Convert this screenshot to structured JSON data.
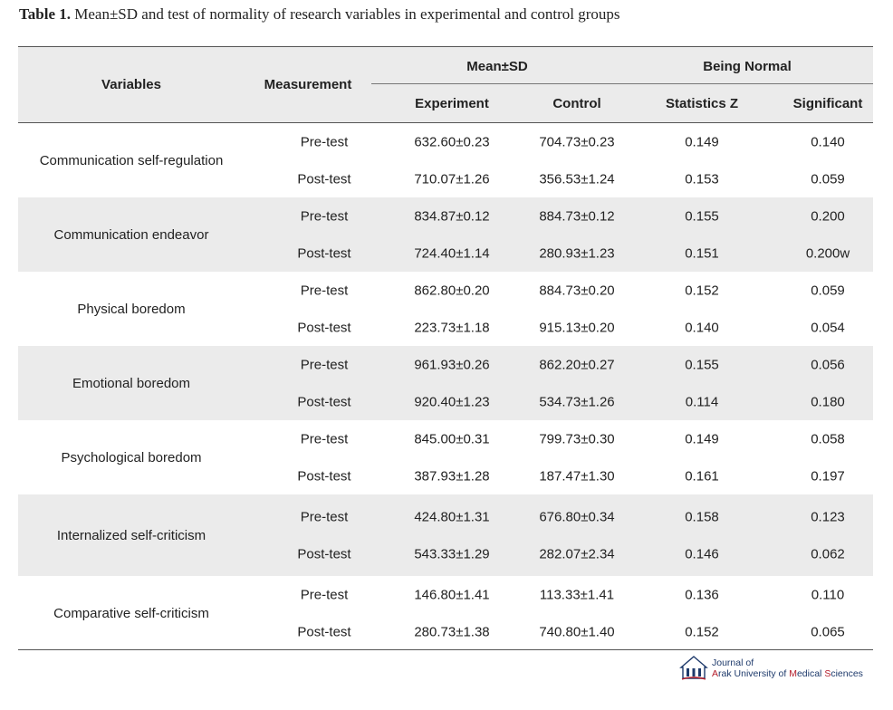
{
  "caption": {
    "label": "Table 1.",
    "text": "Mean±SD and test of normality of research variables in experimental and control groups"
  },
  "header": {
    "variables": "Variables",
    "measurement": "Measurement",
    "mean_sd": "Mean±SD",
    "being_normal": "Being Normal",
    "experiment": "Experiment",
    "control": "Control",
    "statistics_z": "Statistics Z",
    "significant": "Significant"
  },
  "groups": [
    {
      "variable": "Communication self-regulation",
      "rows": [
        {
          "measurement": "Pre-test",
          "experiment": "632.60±0.23",
          "control": "704.73±0.23",
          "z": "0.149",
          "sig": "0.140"
        },
        {
          "measurement": "Post-test",
          "experiment": "710.07±1.26",
          "control": "356.53±1.24",
          "z": "0.153",
          "sig": "0.059"
        }
      ]
    },
    {
      "variable": "Communication endeavor",
      "rows": [
        {
          "measurement": "Pre-test",
          "experiment": "834.87±0.12",
          "control": "884.73±0.12",
          "z": "0.155",
          "sig": "0.200"
        },
        {
          "measurement": "Post-test",
          "experiment": "724.40±1.14",
          "control": "280.93±1.23",
          "z": "0.151",
          "sig": "0.200w"
        }
      ]
    },
    {
      "variable": "Physical boredom",
      "rows": [
        {
          "measurement": "Pre-test",
          "experiment": "862.80±0.20",
          "control": "884.73±0.20",
          "z": "0.152",
          "sig": "0.059"
        },
        {
          "measurement": "Post-test",
          "experiment": "223.73±1.18",
          "control": "915.13±0.20",
          "z": "0.140",
          "sig": "0.054"
        }
      ]
    },
    {
      "variable": "Emotional boredom",
      "rows": [
        {
          "measurement": "Pre-test",
          "experiment": "961.93±0.26",
          "control": "862.20±0.27",
          "z": "0.155",
          "sig": "0.056"
        },
        {
          "measurement": "Post-test",
          "experiment": "920.40±1.23",
          "control": "534.73±1.26",
          "z": "0.114",
          "sig": "0.180"
        }
      ]
    },
    {
      "variable": "Psychological boredom",
      "rows": [
        {
          "measurement": "Pre-test",
          "experiment": "845.00±0.31",
          "control": "799.73±0.30",
          "z": "0.149",
          "sig": "0.058"
        },
        {
          "measurement": "Post-test",
          "experiment": "387.93±1.28",
          "control": "187.47±1.30",
          "z": "0.161",
          "sig": "0.197"
        }
      ]
    },
    {
      "variable": "Internalized self-criticism",
      "rows": [
        {
          "measurement": "Pre-test",
          "experiment": "424.80±1.31",
          "control": "676.80±0.34",
          "z": "0.158",
          "sig": "0.123"
        },
        {
          "measurement": "Post-test",
          "experiment": "543.33±1.29",
          "control": "282.07±2.34",
          "z": "0.146",
          "sig": "0.062"
        }
      ]
    },
    {
      "variable": "Comparative self-criticism",
      "rows": [
        {
          "measurement": "Pre-test",
          "experiment": "146.80±1.41",
          "control": "113.33±1.41",
          "z": "0.136",
          "sig": "0.110"
        },
        {
          "measurement": "Post-test",
          "experiment": "280.73±1.38",
          "control": "740.80±1.40",
          "z": "0.152",
          "sig": "0.065"
        }
      ]
    }
  ],
  "footer": {
    "journal_line1": "Journal of",
    "journal_line2_a": "A",
    "journal_line2_b": "rak University of ",
    "journal_line2_c": "M",
    "journal_line2_d": "edical ",
    "journal_line2_e": "S",
    "journal_line2_f": "ciences",
    "colors": {
      "navy": "#1e3a6b",
      "red": "#b51c2a",
      "shade": "#ebebeb"
    },
    "logo_icon": "university-seal-icon"
  }
}
